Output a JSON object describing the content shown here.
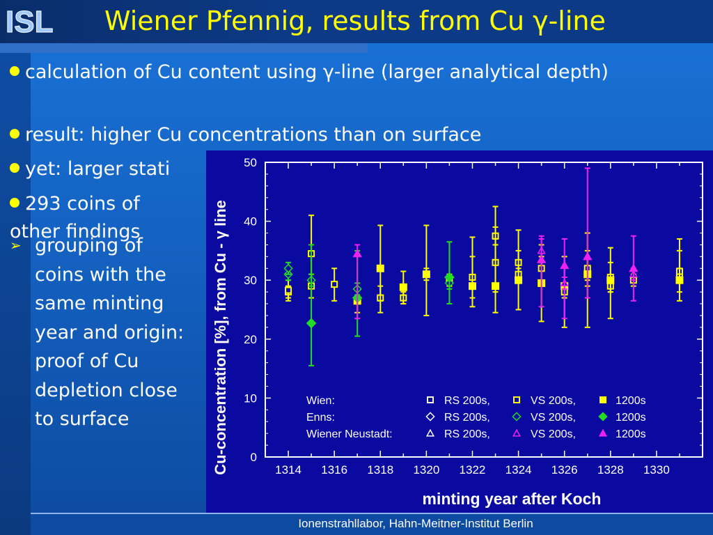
{
  "logo_text": "ISL",
  "title": "Wiener Pfennig, results from Cu γ-line",
  "bullets": [
    "calculation of Cu content using γ-line (larger analytical depth)",
    "result: higher Cu concentrations than on surface",
    "yet: larger stati",
    "293 coins of other findings"
  ],
  "sub_bullet": "grouping of coins with the same minting year and origin: proof of Cu depletion close to surface",
  "footer": "Ionenstrahllabor, Hahn-Meitner-Institut Berlin",
  "colors": {
    "title": "#ffff00",
    "wien": "#ffff00",
    "enns": "#22dd22",
    "neustadt": "#ee22ee",
    "plot_bg": "#0a0aa0",
    "axis": "#ffffff"
  },
  "chart_data": {
    "type": "scatter",
    "xlabel": "minting year after Koch",
    "ylabel": "Cu-concentration [%], from Cu - γ line",
    "xlim": [
      1313,
      1332
    ],
    "ylim": [
      0,
      50
    ],
    "xticks": [
      1314,
      1316,
      1318,
      1320,
      1322,
      1324,
      1326,
      1328,
      1330
    ],
    "yticks": [
      0,
      10,
      20,
      30,
      40,
      50
    ],
    "legend": {
      "rows": [
        {
          "origin": "Wien:",
          "cols": [
            "RS 200s,",
            "VS 200s,",
            "1200s"
          ]
        },
        {
          "origin": "Enns:",
          "cols": [
            "RS 200s,",
            "VS 200s,",
            "1200s"
          ]
        },
        {
          "origin": "Wiener Neustadt:",
          "cols": [
            "RS 200s,",
            "VS 200s,",
            "1200s"
          ]
        }
      ]
    },
    "series": [
      {
        "name": "Wien RS 200s",
        "origin": "Wien",
        "marker": "square-open",
        "points": [
          {
            "x": 1314,
            "y": 28,
            "lo": 27,
            "hi": 29
          },
          {
            "x": 1315,
            "y": 29,
            "lo": 27,
            "hi": 31
          },
          {
            "x": 1319,
            "y": 27,
            "lo": 26,
            "hi": 28
          },
          {
            "x": 1320,
            "y": 31,
            "lo": 30,
            "hi": 32
          },
          {
            "x": 1321,
            "y": 30,
            "lo": 29,
            "hi": 31
          },
          {
            "x": 1323,
            "y": 37.5,
            "lo": 36,
            "hi": 39
          },
          {
            "x": 1324,
            "y": 31,
            "lo": 30,
            "hi": 32
          },
          {
            "x": 1326,
            "y": 28,
            "lo": 27,
            "hi": 29
          },
          {
            "x": 1327,
            "y": 31,
            "lo": 30,
            "hi": 32
          },
          {
            "x": 1328,
            "y": 29,
            "lo": 28,
            "hi": 30
          },
          {
            "x": 1329,
            "y": 30,
            "lo": 29,
            "hi": 31
          },
          {
            "x": 1331,
            "y": 31,
            "lo": 30,
            "hi": 32
          }
        ]
      },
      {
        "name": "Wien VS 200s",
        "origin": "Wien",
        "marker": "square-open",
        "points": [
          {
            "x": 1314,
            "y": 28.3,
            "lo": 26.5,
            "hi": 30
          },
          {
            "x": 1315,
            "y": 34.5,
            "lo": 30,
            "hi": 41
          },
          {
            "x": 1316,
            "y": 29.3,
            "lo": 26.5,
            "hi": 32
          },
          {
            "x": 1318,
            "y": 27,
            "lo": 24.5,
            "hi": 29
          },
          {
            "x": 1322,
            "y": 30.5,
            "lo": 27,
            "hi": 34
          },
          {
            "x": 1323,
            "y": 33,
            "lo": 28,
            "hi": 37
          },
          {
            "x": 1324,
            "y": 33,
            "lo": 30,
            "hi": 35
          },
          {
            "x": 1325,
            "y": 32,
            "lo": 29,
            "hi": 34
          },
          {
            "x": 1327,
            "y": 32,
            "lo": 29,
            "hi": 35
          },
          {
            "x": 1328,
            "y": 30.5,
            "lo": 28,
            "hi": 33
          },
          {
            "x": 1331,
            "y": 31.5,
            "lo": 28,
            "hi": 35
          }
        ]
      },
      {
        "name": "Wien 1200s",
        "origin": "Wien",
        "marker": "square-filled",
        "points": [
          {
            "x": 1317,
            "y": 26.5,
            "lo": 24.5,
            "hi": 28.5
          },
          {
            "x": 1318,
            "y": 32,
            "lo": 26.5,
            "hi": 39.3
          },
          {
            "x": 1319,
            "y": 28.8,
            "lo": 26,
            "hi": 31.5
          },
          {
            "x": 1320,
            "y": 31,
            "lo": 24,
            "hi": 39.3
          },
          {
            "x": 1322,
            "y": 29,
            "lo": 25.5,
            "hi": 37.3
          },
          {
            "x": 1323,
            "y": 29,
            "lo": 24.5,
            "hi": 42.5
          },
          {
            "x": 1324,
            "y": 30,
            "lo": 25,
            "hi": 38.5
          },
          {
            "x": 1325,
            "y": 29.5,
            "lo": 23,
            "hi": 36
          },
          {
            "x": 1326,
            "y": 29,
            "lo": 22,
            "hi": 34
          },
          {
            "x": 1327,
            "y": 31,
            "lo": 22,
            "hi": 38
          },
          {
            "x": 1328,
            "y": 30,
            "lo": 23.5,
            "hi": 35.5
          },
          {
            "x": 1331,
            "y": 30,
            "lo": 26.5,
            "hi": 37
          }
        ]
      },
      {
        "name": "Enns RS 200s",
        "origin": "Enns",
        "marker": "diamond-open",
        "points": [
          {
            "x": 1314,
            "y": 31,
            "lo": 30,
            "hi": 32
          },
          {
            "x": 1315,
            "y": 30,
            "lo": 29,
            "hi": 31
          },
          {
            "x": 1321,
            "y": 29.5,
            "lo": 28.5,
            "hi": 30.5
          }
        ]
      },
      {
        "name": "Enns VS 200s",
        "origin": "Enns",
        "marker": "diamond-open",
        "points": [
          {
            "x": 1314,
            "y": 32,
            "lo": 31,
            "hi": 33
          },
          {
            "x": 1317,
            "y": 28.5,
            "lo": 27.5,
            "hi": 29.5
          }
        ]
      },
      {
        "name": "Enns 1200s",
        "origin": "Enns",
        "marker": "diamond-filled",
        "points": [
          {
            "x": 1315,
            "y": 22.7,
            "lo": 15.5,
            "hi": 36
          },
          {
            "x": 1317,
            "y": 27,
            "lo": 20.5,
            "hi": 35
          },
          {
            "x": 1321,
            "y": 30.5,
            "lo": 26,
            "hi": 36.5
          }
        ]
      },
      {
        "name": "Wiener Neustadt RS 200s",
        "origin": "Wiener Neustadt",
        "marker": "triangle-open",
        "points": [
          {
            "x": 1326,
            "y": 29.5,
            "lo": 28.5,
            "hi": 30.5
          },
          {
            "x": 1329,
            "y": 31,
            "lo": 30,
            "hi": 32
          }
        ]
      },
      {
        "name": "Wiener Neustadt VS 200s",
        "origin": "Wiener Neustadt",
        "marker": "triangle-open",
        "points": [
          {
            "x": 1325,
            "y": 35,
            "lo": 33,
            "hi": 37
          }
        ]
      },
      {
        "name": "Wiener Neustadt 1200s",
        "origin": "Wiener Neustadt",
        "marker": "triangle-filled",
        "points": [
          {
            "x": 1317,
            "y": 34.5,
            "lo": 23.5,
            "hi": 36
          },
          {
            "x": 1325,
            "y": 33.5,
            "lo": 25.5,
            "hi": 37.5
          },
          {
            "x": 1326,
            "y": 32.5,
            "lo": 23.5,
            "hi": 37
          },
          {
            "x": 1327,
            "y": 34,
            "lo": 27,
            "hi": 49
          },
          {
            "x": 1329,
            "y": 32,
            "lo": 26.5,
            "hi": 37.5
          }
        ]
      }
    ]
  }
}
